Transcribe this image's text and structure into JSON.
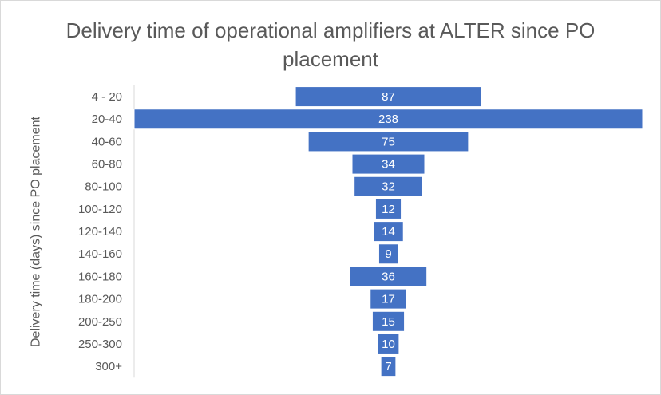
{
  "chart_data": {
    "type": "funnel",
    "title": "Delivery time of operational amplifiers at ALTER since PO placement",
    "y_label": "Delivery time (days) since PO placement",
    "categories": [
      "4 - 20",
      "20-40",
      "40-60",
      "60-80",
      "80-100",
      "100-120",
      "120-140",
      "140-160",
      "160-180",
      "180-200",
      "200-250",
      "250-300",
      "300+"
    ],
    "values": [
      87,
      238,
      75,
      34,
      32,
      12,
      14,
      9,
      36,
      17,
      15,
      10,
      7
    ],
    "color": "#4472c4"
  }
}
